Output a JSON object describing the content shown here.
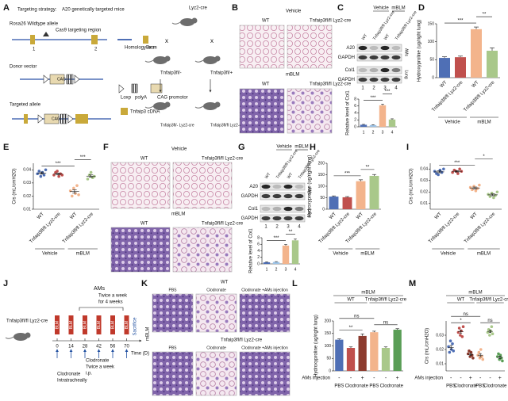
{
  "figure": {
    "panel_letters": [
      "A",
      "B",
      "C",
      "D",
      "E",
      "F",
      "G",
      "H",
      "I",
      "J",
      "K",
      "L",
      "M"
    ]
  },
  "a": {
    "strategy_label": "Targeting strategy:",
    "strategy": "A20 genetically targeted mice",
    "wildtype": "Rosa26 Wildtype allele",
    "cas9": "Cas9 targeting region",
    "exon1": "1",
    "exon2": "2",
    "homology": "Homology arm",
    "exon": "Exon",
    "donor": "Donor vector",
    "loxp": "Loxp",
    "polya": "polyA",
    "cag_promotor": "CAG promotor",
    "targeted": "Targeted allele",
    "cdna": "Tnfaip3 cDNA",
    "cag": "CAG",
    "lyz2": "Lyz2-cre",
    "cross": "x",
    "parent_left": "Tnfaip3fl/-",
    "parent_right": "Tnfaip3fl/+",
    "offspring_left": "Tnfaip3fl/- Lyz2-cre",
    "offspring_right": "Tnfaip3fl/fl Lyz2-cre"
  },
  "b": {
    "vehicle": "Vehicle",
    "mblm": "mBLM",
    "wt": "WT",
    "ko": "Tnfaip3fl/fl Lyz2-cre"
  },
  "c": {
    "vehicle": "Vehicle",
    "mblm": "mBLM",
    "lanes": [
      "WT",
      "Tnfaip3fl/fl Lyz2-cre",
      "WT",
      "Tnfaip3fl/fl Lyz2-cre"
    ],
    "bands": [
      "A20",
      "GAPDH",
      "Col1",
      "GAPDH"
    ],
    "tissues": [
      "AMs",
      "Lung"
    ]
  },
  "f": {
    "vehicle": "Vehicle",
    "mblm": "mBLM",
    "wt": "WT",
    "ko": "Tnfaip3fl/fl Lyz2-cre"
  },
  "g": {
    "vehicle": "Vehicle",
    "mblm": "mBLM",
    "lanes": [
      "WT",
      "Tnfaip3fl/fl Lyz2-cre",
      "WT",
      "Tnfaip3fl/fl Lyz2-cre"
    ],
    "bands": [
      "A20",
      "GAPDH",
      "Col1",
      "GAPDH"
    ],
    "tissues": [
      "AMs",
      "Lung"
    ]
  },
  "j": {
    "mouse": "Tnfaip3fl/fl Lyz2-cre",
    "blm": "BLM",
    "days": [
      0,
      14,
      28,
      42,
      56,
      70
    ],
    "time": "Time (D)",
    "ams": "AMs",
    "ams_schedule": [
      "Twice a week",
      "for 4 weeks"
    ],
    "sacrifice": "Sacrifice",
    "clod_it": [
      "Clodronate",
      "Intratracheally"
    ],
    "clod_ip": [
      "Clodronate",
      "Twice a week",
      "i.p."
    ]
  },
  "k": {
    "mblm": "mBLM",
    "wt": "WT",
    "ko": "Tnfaip3fl/fl Lyz2-cre",
    "conditions": [
      "PBS",
      "Clodronate",
      "Clodronate +AMs injection"
    ]
  },
  "chart_data": [
    {
      "type": "bar",
      "ylabel": "Relative level of Col1",
      "categories": [
        "1",
        "2",
        "3",
        "4"
      ],
      "values": [
        0.6,
        0.5,
        6.2,
        2.1
      ],
      "errors": [
        0.1,
        0.1,
        0.3,
        0.2
      ],
      "colors": [
        "#4f6fb5",
        "#9dc3e6",
        "#f3b48c",
        "#a9c88a"
      ],
      "ylim": [
        0,
        8
      ],
      "yticks": [
        0,
        2,
        4,
        6,
        8
      ],
      "annotations": [
        {
          "from": 0,
          "to": 2,
          "label": "***"
        },
        {
          "from": 2,
          "to": 3,
          "label": "***"
        }
      ]
    },
    {
      "type": "bar",
      "ylabel": "Hydroxyproline (ug/right lung)",
      "categories": [
        "WT",
        "Tnfaip3fl/fl Lyz2-cre",
        "WT",
        "Tnfaip3fl/fl Lyz2-cre"
      ],
      "groups": [
        {
          "label": "Vehicle",
          "from": 0,
          "to": 1
        },
        {
          "label": "mBLM",
          "from": 2,
          "to": 3
        }
      ],
      "values": [
        55,
        57,
        135,
        75
      ],
      "errors": [
        3,
        3,
        6,
        8
      ],
      "colors": [
        "#4f6fb5",
        "#c0504d",
        "#f3b48c",
        "#a9c88a"
      ],
      "ylim": [
        0,
        150
      ],
      "yticks": [
        0,
        50,
        100,
        150
      ],
      "annotations": [
        {
          "from": 0,
          "to": 2,
          "label": "***"
        },
        {
          "from": 2,
          "to": 3,
          "label": "**"
        }
      ]
    },
    {
      "type": "dot",
      "ylabel": "Crs (mL/cmH2O)",
      "categories": [
        "WT",
        "Tnfaip3fl/fl Lyz2-cre",
        "WT",
        "Tnfaip3fl/fl Lyz2-cre"
      ],
      "groups": [
        {
          "label": "Vehicle",
          "from": 0,
          "to": 1
        },
        {
          "label": "mBLM",
          "from": 2,
          "to": 3
        }
      ],
      "values": [
        0.0375,
        0.0368,
        0.0235,
        0.0352
      ],
      "errors": [
        0.0008,
        0.0007,
        0.0013,
        0.0009
      ],
      "points": [
        [
          0.037,
          0.039,
          0.035,
          0.038,
          0.036,
          0.04
        ],
        [
          0.036,
          0.038,
          0.039,
          0.035,
          0.037,
          0.036
        ],
        [
          0.024,
          0.02,
          0.026,
          0.022,
          0.028,
          0.021
        ],
        [
          0.033,
          0.036,
          0.038,
          0.034,
          0.035
        ]
      ],
      "colors": [
        "#4f6fb5",
        "#c0504d",
        "#f3b48c",
        "#a9c88a"
      ],
      "ylim": [
        0.01,
        0.045
      ],
      "yticks": [
        0.01,
        0.02,
        0.03,
        0.04
      ],
      "annotations": [
        {
          "from": 0,
          "to": 2,
          "label": "***"
        },
        {
          "from": 2,
          "to": 3,
          "label": "***"
        }
      ]
    },
    {
      "type": "bar",
      "ylabel": "Relative level of Col1",
      "categories": [
        "1",
        "2",
        "3",
        "4"
      ],
      "values": [
        0.5,
        0.6,
        5.6,
        7.2
      ],
      "errors": [
        0.1,
        0.1,
        0.3,
        0.4
      ],
      "colors": [
        "#4f6fb5",
        "#9dc3e6",
        "#f3b48c",
        "#a9c88a"
      ],
      "ylim": [
        0,
        8
      ],
      "yticks": [
        0,
        2,
        4,
        6,
        8
      ],
      "annotations": [
        {
          "from": 0,
          "to": 2,
          "label": "***"
        },
        {
          "from": 2,
          "to": 3,
          "label": "**"
        }
      ]
    },
    {
      "type": "bar",
      "ylabel": "Hydroxyproline (ug/right lung)",
      "categories": [
        "WT",
        "Tnfaip3fl/fl Lyz2-cre",
        "WT",
        "Tnfaip3fl/fl Lyz2-cre"
      ],
      "groups": [
        {
          "label": "Vehicle",
          "from": 0,
          "to": 1
        },
        {
          "label": "mBLM",
          "from": 2,
          "to": 3
        }
      ],
      "values": [
        55,
        52,
        122,
        145
      ],
      "errors": [
        3,
        3,
        6,
        6
      ],
      "colors": [
        "#4f6fb5",
        "#c0504d",
        "#f3b48c",
        "#a9c88a"
      ],
      "ylim": [
        0,
        200
      ],
      "yticks": [
        0,
        50,
        100,
        150,
        200
      ],
      "annotations": [
        {
          "from": 0,
          "to": 2,
          "label": "***"
        },
        {
          "from": 2,
          "to": 3,
          "label": "**"
        }
      ]
    },
    {
      "type": "dot",
      "ylabel": "Crs (mL/cmH2O)",
      "categories": [
        "WT",
        "Tnfaip3fl/fl Lyz2-cre",
        "WT",
        "Tnfaip3fl/fl Lyz2-cre"
      ],
      "groups": [
        {
          "label": "Vehicle",
          "from": 0,
          "to": 1
        },
        {
          "label": "mBLM",
          "from": 2,
          "to": 3
        }
      ],
      "values": [
        0.0375,
        0.038,
        0.0235,
        0.0175
      ],
      "errors": [
        0.0008,
        0.0006,
        0.0008,
        0.0008
      ],
      "points": [
        [
          0.038,
          0.036,
          0.035,
          0.039,
          0.037,
          0.04
        ],
        [
          0.037,
          0.039,
          0.038,
          0.036,
          0.04,
          0.038
        ],
        [
          0.024,
          0.022,
          0.025,
          0.021,
          0.023,
          0.026
        ],
        [
          0.018,
          0.016,
          0.019,
          0.015,
          0.017,
          0.02
        ]
      ],
      "colors": [
        "#4f6fb5",
        "#c0504d",
        "#f3b48c",
        "#a9c88a"
      ],
      "ylim": [
        0.005,
        0.045
      ],
      "yticks": [
        0.01,
        0.02,
        0.03,
        0.04
      ],
      "annotations": [
        {
          "from": 0,
          "to": 2,
          "label": "***"
        },
        {
          "from": 2,
          "to": 3,
          "label": "*"
        }
      ]
    },
    {
      "type": "bar",
      "ylabel": "Hydroxyproline (ug/right lung)",
      "header": "mBLM",
      "subgroups": [
        {
          "label": "WT",
          "from": 0,
          "to": 2
        },
        {
          "label": "Tnfaip3fl/fl Lyz2-cre",
          "from": 3,
          "to": 5
        }
      ],
      "row_label": "AMs injection",
      "signs": [
        "-",
        "-",
        "+",
        "-",
        "-",
        "+"
      ],
      "drugs": [
        {
          "label": "PBS",
          "from": 0,
          "to": 0
        },
        {
          "label": "Clodronate",
          "from": 1,
          "to": 2
        },
        {
          "label": "PBS",
          "from": 3,
          "to": 3
        },
        {
          "label": "Clodronate",
          "from": 4,
          "to": 5
        }
      ],
      "values": [
        125,
        92,
        140,
        155,
        92,
        165
      ],
      "errors": [
        3,
        4,
        8,
        4,
        4,
        4
      ],
      "colors": [
        "#4f6fb5",
        "#c0504d",
        "#8c3b2e",
        "#f3b48c",
        "#a9c88a",
        "#5a9e56"
      ],
      "ylim": [
        0,
        200
      ],
      "yticks": [
        0,
        50,
        100,
        150,
        200
      ],
      "annotations": [
        {
          "from": 0,
          "to": 2,
          "label": "**"
        },
        {
          "from": 3,
          "to": 5,
          "label": "ns"
        },
        {
          "from": 0,
          "to": 3,
          "label": "ns"
        }
      ]
    },
    {
      "type": "dot",
      "ylabel": "Crs (mL/cmH2O)",
      "header": "mBLM",
      "subgroups": [
        {
          "label": "WT",
          "from": 0,
          "to": 2
        },
        {
          "label": "Tnfaip3fl/fl Lyz2-cre",
          "from": 3,
          "to": 5
        }
      ],
      "row_label": "AMs injection",
      "signs": [
        "-",
        "-",
        "+",
        "-",
        "-",
        "+"
      ],
      "drugs": [
        {
          "label": "PBS",
          "from": 0,
          "to": 0
        },
        {
          "label": "Clodronate",
          "from": 1,
          "to": 2
        },
        {
          "label": "PBS",
          "from": 3,
          "to": 3
        },
        {
          "label": "Clodronate",
          "from": 4,
          "to": 5
        }
      ],
      "values": [
        0.0215,
        0.0325,
        0.0165,
        0.016,
        0.0327,
        0.0145
      ],
      "errors": [
        0.0013,
        0.0011,
        0.0008,
        0.0011,
        0.0009,
        0.0008
      ],
      "points": [
        [
          0.022,
          0.018,
          0.026,
          0.02,
          0.024,
          0.019
        ],
        [
          0.032,
          0.035,
          0.03,
          0.033,
          0.029,
          0.036
        ],
        [
          0.017,
          0.019,
          0.015,
          0.018,
          0.016,
          0.014
        ],
        [
          0.016,
          0.018,
          0.014,
          0.02,
          0.015,
          0.013
        ],
        [
          0.032,
          0.034,
          0.03,
          0.033,
          0.036,
          0.031
        ],
        [
          0.015,
          0.017,
          0.013,
          0.016,
          0.014,
          0.012
        ]
      ],
      "colors": [
        "#4f6fb5",
        "#c0504d",
        "#8c3b2e",
        "#f3b48c",
        "#a9c88a",
        "#5a9e56"
      ],
      "ylim": [
        0.005,
        0.04
      ],
      "yticks": [
        0.01,
        0.02,
        0.03
      ],
      "annotations": [
        {
          "from": 0,
          "to": 2,
          "label": "*"
        },
        {
          "from": 3,
          "to": 5,
          "label": "ns"
        },
        {
          "from": 0,
          "to": 3,
          "label": "ns"
        }
      ]
    }
  ]
}
